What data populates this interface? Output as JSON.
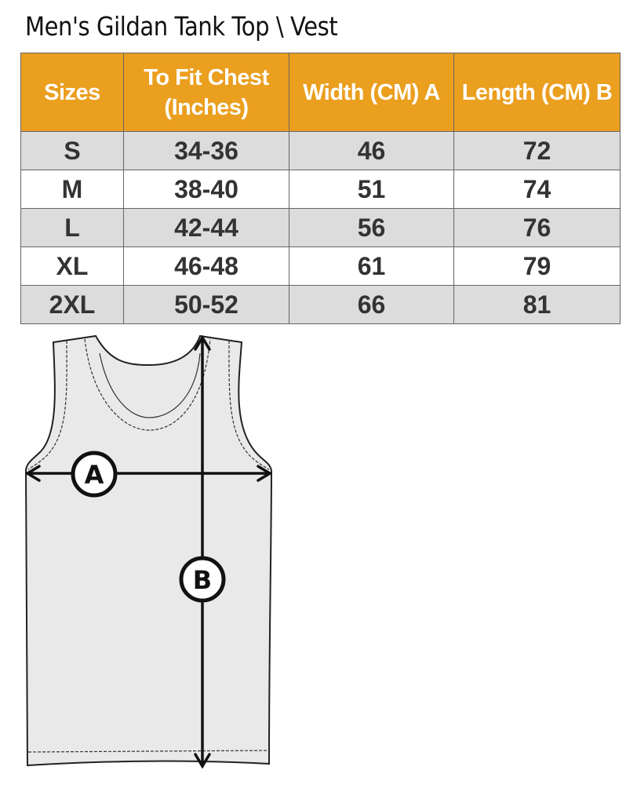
{
  "title": "Men's Gildan Tank Top \\ Vest",
  "table": {
    "headers": [
      "Sizes",
      "To Fit Chest (Inches)",
      "Width (CM) A",
      "Length  (CM) B"
    ],
    "rows": [
      [
        "S",
        "34-36",
        "46",
        "72"
      ],
      [
        "M",
        "38-40",
        "51",
        "74"
      ],
      [
        "L",
        "42-44",
        "56",
        "76"
      ],
      [
        "XL",
        "46-48",
        "61",
        "79"
      ],
      [
        "2XL",
        "50-52",
        "66",
        "81"
      ]
    ]
  },
  "diagram": {
    "width_marker": "A",
    "length_marker": "B"
  },
  "colors": {
    "header_bg": "#eb9f1f",
    "stripe_bg": "#dcdcdc",
    "garment_fill": "#e9e9e9"
  }
}
